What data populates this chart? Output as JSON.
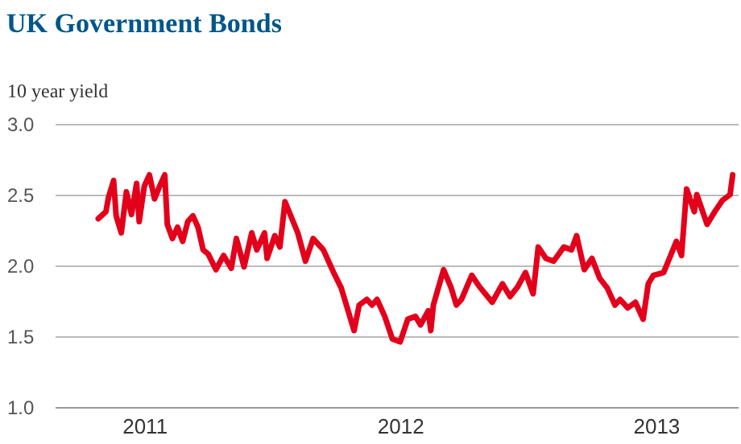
{
  "chart_data": {
    "type": "line",
    "title": "UK Government Bonds",
    "ylabel": "10 year yield",
    "x": [
      2010.82,
      2010.85,
      2010.86,
      2010.88,
      2010.89,
      2010.91,
      2010.93,
      2010.95,
      2010.97,
      2010.98,
      2011.0,
      2011.02,
      2011.04,
      2011.06,
      2011.08,
      2011.09,
      2011.11,
      2011.13,
      2011.15,
      2011.17,
      2011.19,
      2011.21,
      2011.23,
      2011.25,
      2011.28,
      2011.31,
      2011.34,
      2011.36,
      2011.39,
      2011.42,
      2011.44,
      2011.47,
      2011.48,
      2011.51,
      2011.53,
      2011.55,
      2011.6,
      2011.63,
      2011.66,
      2011.7,
      2011.74,
      2011.77,
      2011.79,
      2011.82,
      2011.84,
      2011.87,
      2011.89,
      2011.91,
      2011.94,
      2011.97,
      2012.0,
      2012.03,
      2012.06,
      2012.08,
      2012.11,
      2012.12,
      2012.13,
      2012.17,
      2012.2,
      2012.22,
      2012.24,
      2012.28,
      2012.31,
      2012.36,
      2012.4,
      2012.43,
      2012.46,
      2012.49,
      2012.52,
      2012.54,
      2012.57,
      2012.6,
      2012.64,
      2012.67,
      2012.69,
      2012.72,
      2012.75,
      2012.78,
      2012.81,
      2012.84,
      2012.86,
      2012.89,
      2012.92,
      2012.95,
      2012.97,
      2012.99,
      2013.03,
      2013.08,
      2013.1,
      2013.12,
      2013.15,
      2013.16,
      2013.2,
      2013.23,
      2013.26,
      2013.29,
      2013.3
    ],
    "series": [
      {
        "color": "#e3001b",
        "values": [
          2.33,
          2.38,
          2.48,
          2.6,
          2.35,
          2.23,
          2.52,
          2.36,
          2.58,
          2.31,
          2.56,
          2.64,
          2.47,
          2.56,
          2.64,
          2.29,
          2.19,
          2.27,
          2.17,
          2.31,
          2.35,
          2.27,
          2.11,
          2.08,
          1.97,
          2.07,
          1.98,
          2.19,
          1.99,
          2.23,
          2.11,
          2.23,
          2.05,
          2.21,
          2.13,
          2.45,
          2.23,
          2.03,
          2.19,
          2.11,
          1.95,
          1.84,
          1.72,
          1.54,
          1.72,
          1.76,
          1.72,
          1.76,
          1.64,
          1.48,
          1.46,
          1.62,
          1.64,
          1.58,
          1.68,
          1.54,
          1.72,
          1.97,
          1.84,
          1.72,
          1.76,
          1.93,
          1.85,
          1.74,
          1.87,
          1.78,
          1.85,
          1.95,
          1.8,
          2.13,
          2.05,
          2.03,
          2.13,
          2.11,
          2.21,
          1.97,
          2.05,
          1.91,
          1.84,
          1.72,
          1.76,
          1.7,
          1.74,
          1.62,
          1.87,
          1.93,
          1.95,
          2.17,
          2.07,
          2.54,
          2.38,
          2.5,
          2.29,
          2.38,
          2.46,
          2.5,
          2.64
        ]
      }
    ],
    "xlim": [
      2010.65,
      2013.32
    ],
    "xticks": [
      2011,
      2012,
      2013
    ],
    "ylim": [
      1.0,
      3.0
    ],
    "yticks": [
      {
        "value": 1.0,
        "label": "1.0"
      },
      {
        "value": 1.5,
        "label": "1.5"
      },
      {
        "value": 2.0,
        "label": "2.0"
      },
      {
        "value": 2.5,
        "label": "2.5"
      },
      {
        "value": 3.0,
        "label": "3.0"
      }
    ],
    "grid": "y",
    "legend": false,
    "marker": "none",
    "line_style": "solid"
  }
}
